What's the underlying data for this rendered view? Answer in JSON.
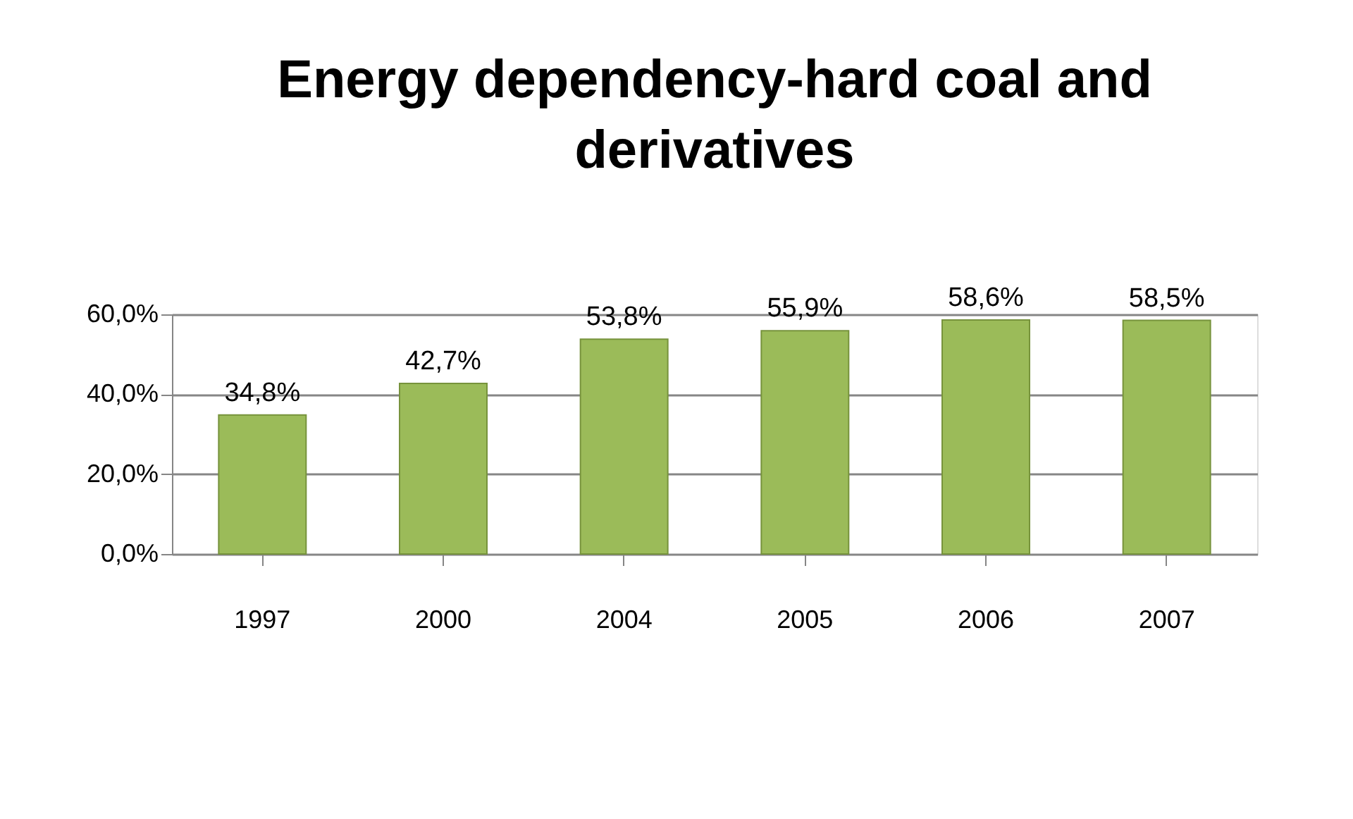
{
  "chart_data": {
    "type": "bar",
    "title": "Energy dependency-hard coal and derivatives",
    "categories": [
      "1997",
      "2000",
      "2004",
      "2005",
      "2006",
      "2007"
    ],
    "values": [
      34.8,
      42.7,
      53.8,
      55.9,
      58.6,
      58.5
    ],
    "value_labels": [
      "34,8%",
      "42,7%",
      "53,8%",
      "55,9%",
      "58,6%",
      "58,5%"
    ],
    "color": "#9bbb59",
    "ylim": [
      0,
      60
    ],
    "yticks": [
      {
        "value": 0,
        "label": "0,0%"
      },
      {
        "value": 20,
        "label": "20,0%"
      },
      {
        "value": 40,
        "label": "40,0%"
      },
      {
        "value": 60,
        "label": "60,0%"
      }
    ],
    "grid": "y"
  }
}
